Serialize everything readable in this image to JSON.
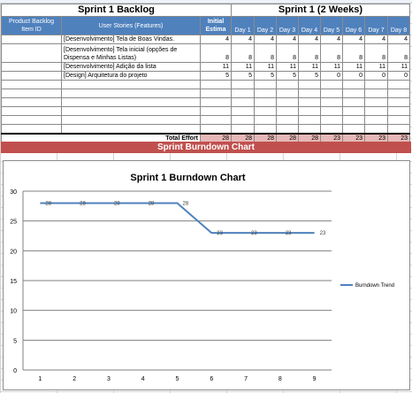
{
  "backlog": {
    "left_title": "Sprint 1 Backlog",
    "right_title": "Sprint 1 (2 Weeks)",
    "col_product": "Product Backlog Item ID",
    "col_stories": "User Stories (Features)",
    "col_initial": "Initial Estima",
    "days": [
      "Day 1",
      "Day 2",
      "Day 3",
      "Day 4",
      "Day 5",
      "Day 6",
      "Day 7",
      "Day 8"
    ],
    "rows": [
      {
        "story": "[Desenvolvimento] Tela de Boas Vindas.",
        "initial": "4",
        "values": [
          "4",
          "4",
          "4",
          "4",
          "4",
          "4",
          "4",
          "4"
        ]
      },
      {
        "story": "[Desenvolvimento] Tela inicial (opções de Dispensa e Minhas Listas)",
        "initial": "8",
        "values": [
          "8",
          "8",
          "8",
          "8",
          "8",
          "8",
          "8",
          "8"
        ]
      },
      {
        "story": "[Desenvolvimento] Adição da lista",
        "initial": "11",
        "values": [
          "11",
          "11",
          "11",
          "11",
          "11",
          "11",
          "11",
          "11"
        ]
      },
      {
        "story": "[Design] Arquitetura do projeto",
        "initial": "5",
        "values": [
          "5",
          "5",
          "5",
          "5",
          "0",
          "0",
          "0",
          "0"
        ]
      }
    ],
    "total_label": "Total Effort",
    "total_initial": "28",
    "totals": [
      "28",
      "28",
      "28",
      "28",
      "23",
      "23",
      "23",
      "23"
    ]
  },
  "banner_title": "Sprint Burndown Chart",
  "chart_data": {
    "type": "line",
    "title": "Sprint 1 Burndown Chart",
    "x": [
      1,
      2,
      3,
      4,
      5,
      6,
      7,
      8,
      9
    ],
    "x_ticks": [
      "1",
      "2",
      "3",
      "4",
      "5",
      "6",
      "7",
      "8",
      "9"
    ],
    "y_ticks": [
      "0",
      "5",
      "10",
      "15",
      "20",
      "25",
      "30"
    ],
    "ylim": [
      0,
      30
    ],
    "series": [
      {
        "name": "Burndown Trend",
        "values": [
          28,
          28,
          28,
          28,
          28,
          23,
          23,
          23,
          23
        ],
        "color": "#4f81bd"
      }
    ],
    "data_labels": [
      "28",
      "28",
      "28",
      "28",
      "28",
      "23",
      "23",
      "23",
      "23"
    ],
    "grid": true,
    "legend_position": "right"
  }
}
